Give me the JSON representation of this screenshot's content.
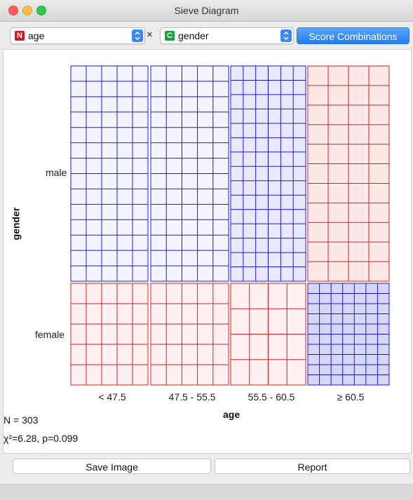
{
  "window": {
    "title": "Sieve Diagram"
  },
  "toolbar": {
    "attr_x": {
      "type_badge": "N",
      "value": "age"
    },
    "times": "×",
    "attr_y": {
      "type_badge": "C",
      "value": "gender"
    },
    "score_button": "Score Combinations"
  },
  "diagram": {
    "x_axis_title": "age",
    "y_axis_title": "gender",
    "column_labels": [
      "< 47.5",
      "47.5 - 55.5",
      "55.5 - 60.5",
      "≥ 60.5"
    ],
    "row_labels": [
      "male",
      "female"
    ],
    "cells": [
      {
        "row": 0,
        "col": 0,
        "color": "blue",
        "intensity": "light",
        "grid_cols": 5,
        "grid_rows": 14
      },
      {
        "row": 0,
        "col": 1,
        "color": "blue",
        "intensity": "light",
        "grid_cols": 5,
        "grid_rows": 14
      },
      {
        "row": 0,
        "col": 2,
        "color": "blue",
        "intensity": "medium",
        "grid_cols": 6,
        "grid_rows": 15
      },
      {
        "row": 0,
        "col": 3,
        "color": "red",
        "intensity": "medium",
        "grid_cols": 4,
        "grid_rows": 11
      },
      {
        "row": 1,
        "col": 0,
        "color": "red",
        "intensity": "light",
        "grid_cols": 5,
        "grid_rows": 5
      },
      {
        "row": 1,
        "col": 1,
        "color": "red",
        "intensity": "light",
        "grid_cols": 5,
        "grid_rows": 5
      },
      {
        "row": 1,
        "col": 2,
        "color": "red",
        "intensity": "light",
        "grid_cols": 4,
        "grid_rows": 4
      },
      {
        "row": 1,
        "col": 3,
        "color": "blue",
        "intensity": "strong",
        "grid_cols": 7,
        "grid_rows": 10
      }
    ],
    "colors": {
      "blue_line": "#1a1acc",
      "red_line": "#d42020",
      "blue_light": "#f4f4ff",
      "blue_medium": "#e9e9fb",
      "blue_strong": "#d6d6f6",
      "red_light": "#fff1f1",
      "red_medium": "#fde8e8"
    }
  },
  "stats": {
    "n": "N = 303",
    "chi": "χ²=6.28, p=0.099"
  },
  "buttons": {
    "save": "Save Image",
    "report": "Report"
  }
}
